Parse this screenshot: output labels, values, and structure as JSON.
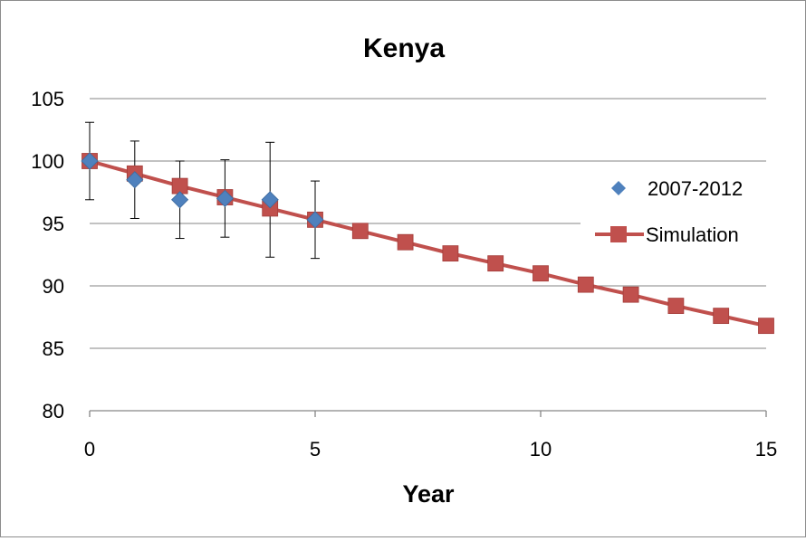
{
  "chart_data": {
    "type": "scatter",
    "title": "Kenya",
    "xlabel": "Year",
    "ylabel": "",
    "xlim": [
      0,
      15
    ],
    "ylim": [
      80,
      105
    ],
    "xticks": [
      0,
      5,
      10,
      15
    ],
    "yticks": [
      80,
      85,
      90,
      95,
      100,
      105
    ],
    "grid": "horizontal",
    "legend_position": "right",
    "series": [
      {
        "name": "2007-2012",
        "kind": "scatter",
        "marker": "diamond",
        "color": "#4f81bd",
        "x": [
          0,
          1,
          2,
          3,
          4,
          5
        ],
        "y": [
          100.0,
          98.5,
          96.9,
          97.0,
          96.9,
          95.3
        ],
        "error": [
          3.1,
          3.1,
          3.1,
          3.1,
          4.6,
          3.1
        ]
      },
      {
        "name": "Simulation",
        "kind": "line",
        "marker": "square",
        "color": "#c0504d",
        "x": [
          0,
          1,
          2,
          3,
          4,
          5,
          6,
          7,
          8,
          9,
          10,
          11,
          12,
          13,
          14,
          15
        ],
        "y": [
          100.0,
          99.0,
          98.0,
          97.1,
          96.2,
          95.3,
          94.4,
          93.5,
          92.6,
          91.8,
          91.0,
          90.1,
          89.3,
          88.4,
          87.6,
          86.8
        ]
      }
    ]
  }
}
